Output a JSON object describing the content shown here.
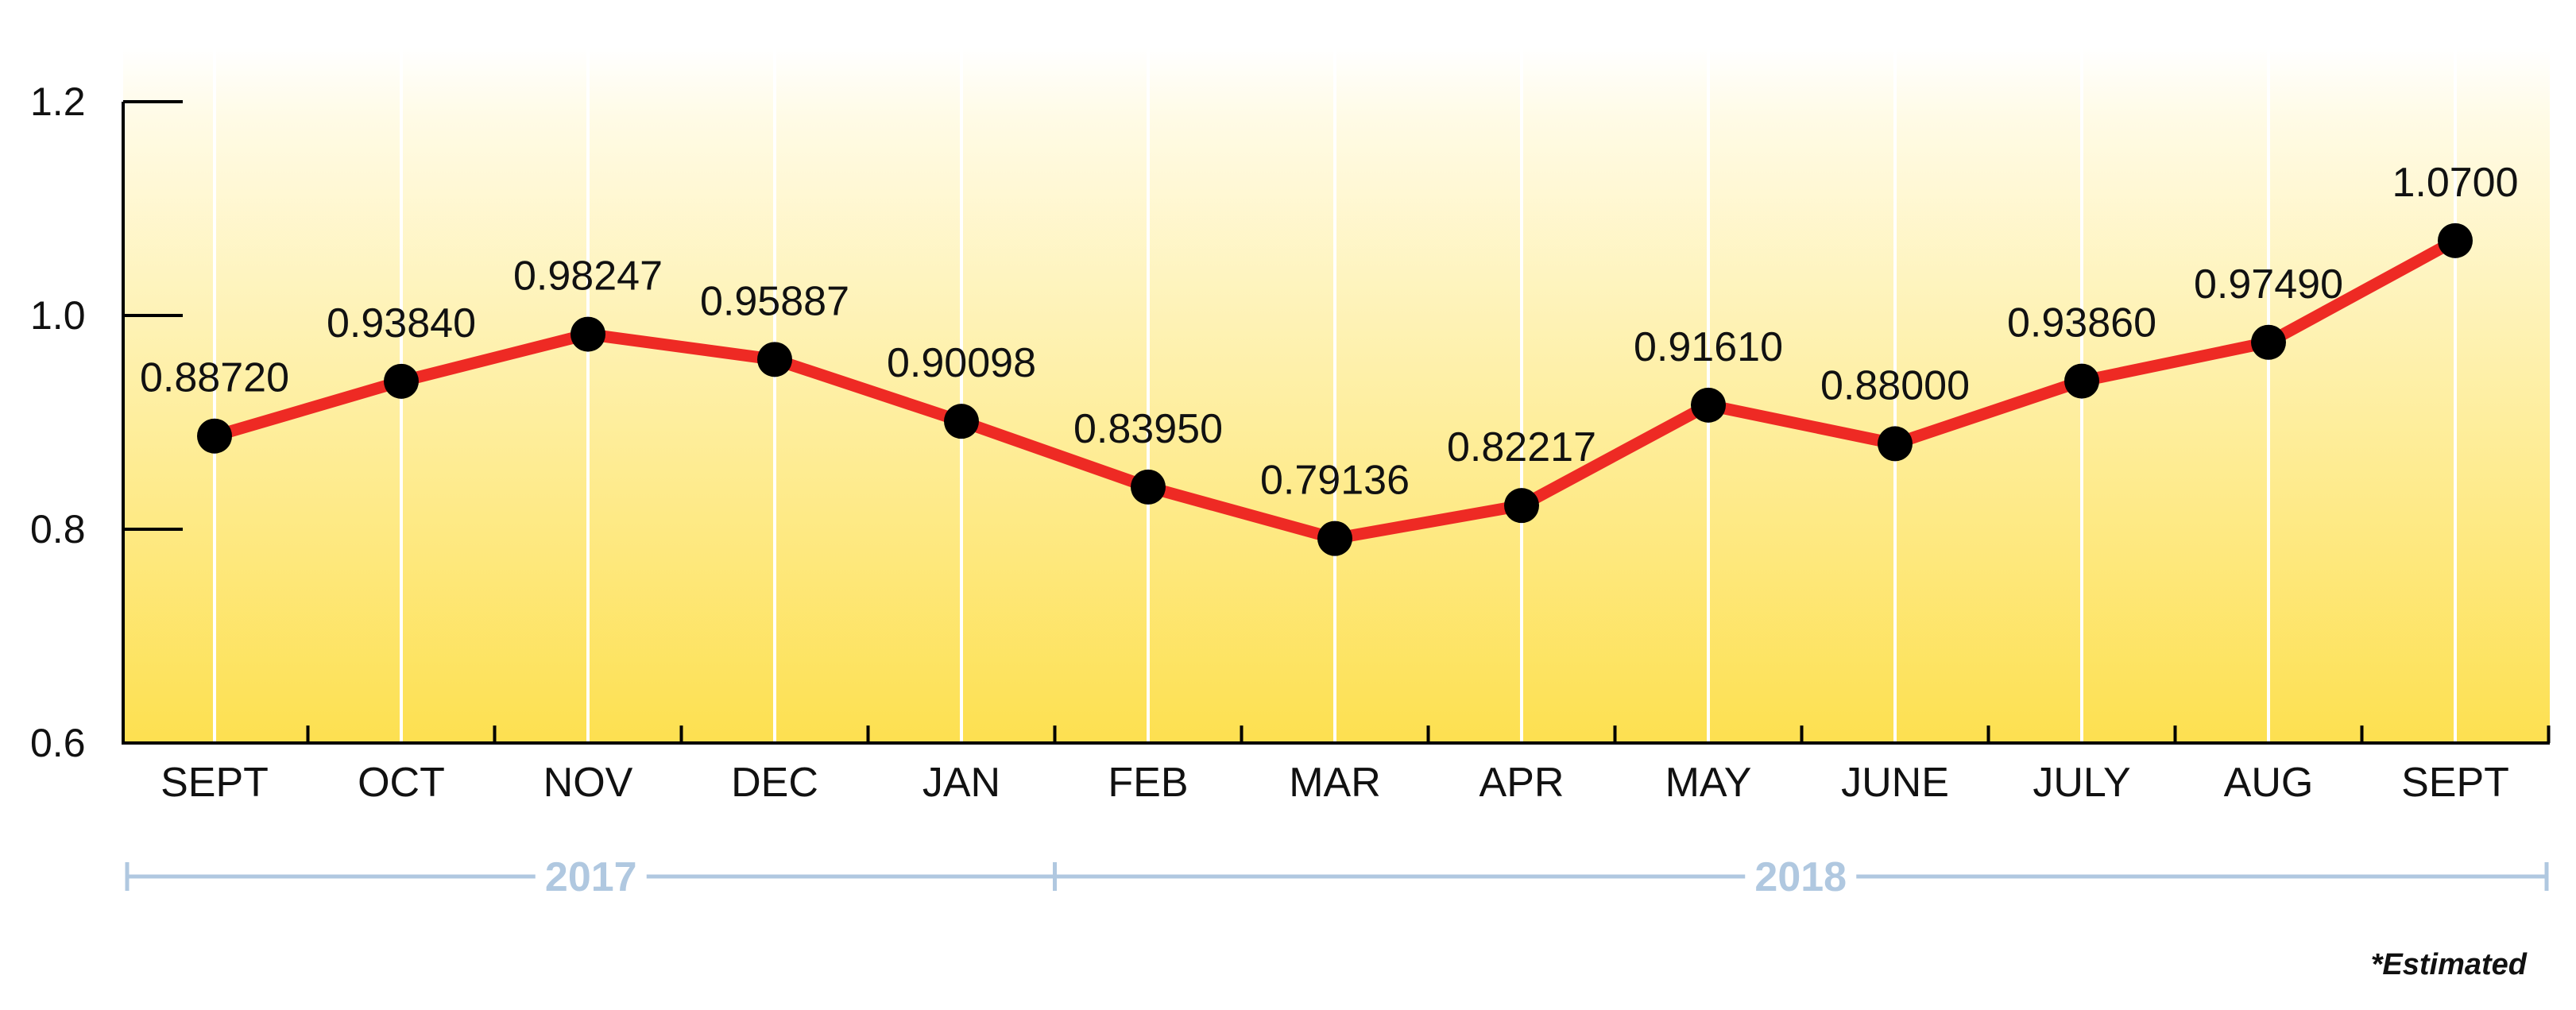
{
  "chart_data": {
    "type": "line",
    "title": "",
    "xlabel": "",
    "ylabel": "",
    "categories": [
      "SEPT",
      "OCT",
      "NOV",
      "DEC",
      "JAN",
      "FEB",
      "MAR",
      "APR",
      "MAY",
      "JUNE",
      "JULY",
      "AUG",
      "SEPT"
    ],
    "values": [
      0.8872,
      0.9384,
      0.98247,
      0.95887,
      0.90098,
      0.8395,
      0.79136,
      0.82217,
      0.9161,
      0.88,
      0.9386,
      0.9749,
      1.07
    ],
    "data_labels": [
      "0.88720",
      "0.93840",
      "0.98247",
      "0.95887",
      "0.90098",
      "0.83950",
      "0.79136",
      "0.82217",
      "0.91610",
      "0.88000",
      "0.93860",
      "0.97490",
      "1.0700"
    ],
    "ylim": [
      0.6,
      1.2
    ],
    "yticks": [
      0.6,
      0.8,
      1.0,
      1.2
    ],
    "ytick_labels": [
      "0.6",
      "0.8",
      "1.0",
      "1.2"
    ],
    "grid": "vertical",
    "year_groups": [
      {
        "label": "2017",
        "start_index": 0,
        "end_index": 4
      },
      {
        "label": "2018",
        "start_index": 5,
        "end_index": 12
      }
    ],
    "note": "*Estimated",
    "colors": {
      "line": "#ee2a24",
      "marker": "#000000",
      "background_top": "#ffffff",
      "background_bottom": "#fde050",
      "year_axis": "#b0c8e0"
    }
  }
}
